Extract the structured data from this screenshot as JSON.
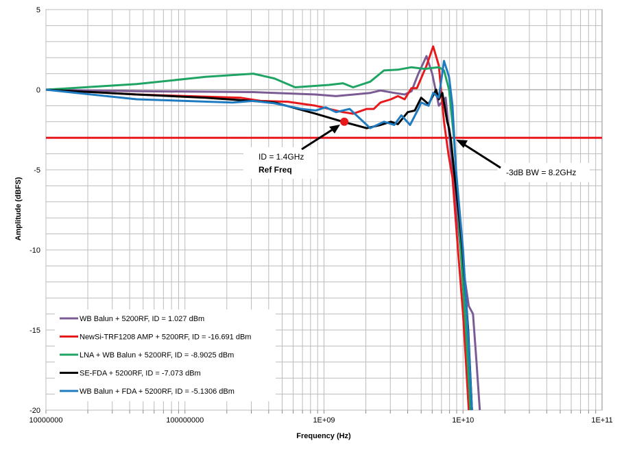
{
  "chart_data": {
    "type": "line",
    "xlabel": "Frequency (Hz)",
    "ylabel": "Amplitude (dBFS)",
    "x_scale": "log",
    "xlim": [
      10000000,
      100000000000
    ],
    "ylim": [
      -20,
      5
    ],
    "x_ticks": [
      "10000000",
      "100000000",
      "1E+09",
      "1E+10",
      "1E+11"
    ],
    "y_ticks": [
      "5",
      "0",
      "-5",
      "-10",
      "-15",
      "-20"
    ],
    "y_tick_values": [
      5,
      0,
      -5,
      -10,
      -15,
      -20
    ],
    "grid": true,
    "legend_position": "bottom-left",
    "series": [
      {
        "name": "WB Balun + 5200RF, ID =  1.027 dBm",
        "color": "#7b5b94",
        "points": [
          [
            10000000.0,
            0
          ],
          [
            45000000.0,
            -0.1
          ],
          [
            310000000.0,
            -0.15
          ],
          [
            870000000.0,
            -0.3
          ],
          [
            1220000000.0,
            -0.4
          ],
          [
            2150000000.0,
            -0.2
          ],
          [
            2550000000.0,
            -0.05
          ],
          [
            3200000000.0,
            -0.2
          ],
          [
            3800000000.0,
            -0.3
          ],
          [
            4260000000.0,
            -0.1
          ],
          [
            4770000000.0,
            1.0
          ],
          [
            5460000000.0,
            2.1
          ],
          [
            6000000000.0,
            1.0
          ],
          [
            6700000000.0,
            -1.0
          ],
          [
            7500000000.0,
            -0.5
          ],
          [
            8000000000.0,
            -3
          ],
          [
            8400000000.0,
            -5
          ],
          [
            9600000000.0,
            -10
          ],
          [
            11000000000.0,
            -13.5
          ],
          [
            11800000000.0,
            -14
          ],
          [
            12500000000.0,
            -17
          ],
          [
            13200000000.0,
            -20
          ]
        ]
      },
      {
        "name": "NewSi-TRF1208 AMP + 5200RF, ID =  -16.691 dBm",
        "color": "#e8191c",
        "points": [
          [
            10000000.0,
            0
          ],
          [
            45000000.0,
            -0.3
          ],
          [
            250000000.0,
            -0.5
          ],
          [
            350000000.0,
            -0.7
          ],
          [
            550000000.0,
            -0.75
          ],
          [
            870000000.0,
            -1.0
          ],
          [
            1370000000.0,
            -1.4
          ],
          [
            1620000000.0,
            -1.5
          ],
          [
            2030000000.0,
            -1.2
          ],
          [
            2280000000.0,
            -1.2
          ],
          [
            2550000000.0,
            -0.8
          ],
          [
            3030000000.0,
            -0.6
          ],
          [
            3400000000.0,
            -0.4
          ],
          [
            3800000000.0,
            -0.6
          ],
          [
            4260000000.0,
            0.1
          ],
          [
            4660000000.0,
            0.1
          ],
          [
            5460000000.0,
            1.5
          ],
          [
            6100000000.0,
            2.7
          ],
          [
            6700000000.0,
            1.5
          ],
          [
            7300000000.0,
            -2
          ],
          [
            7850000000.0,
            -4
          ],
          [
            8400000000.0,
            -5.5
          ],
          [
            9200000000.0,
            -10
          ],
          [
            10000000000.0,
            -14
          ],
          [
            10500000000.0,
            -17
          ],
          [
            11000000000.0,
            -20
          ]
        ]
      },
      {
        "name": "LNA + WB Balun + 5200RF, ID =  -8.9025 dBm",
        "color": "#1fa463",
        "points": [
          [
            10000000.0,
            0
          ],
          [
            45000000.0,
            0.35
          ],
          [
            140000000.0,
            0.8
          ],
          [
            310000000.0,
            1.0
          ],
          [
            440000000.0,
            0.7
          ],
          [
            620000000.0,
            0.15
          ],
          [
            1090000000.0,
            0.3
          ],
          [
            1370000000.0,
            0.4
          ],
          [
            1620000000.0,
            0.15
          ],
          [
            2150000000.0,
            0.5
          ],
          [
            2700000000.0,
            1.2
          ],
          [
            3400000000.0,
            1.25
          ],
          [
            4260000000.0,
            1.4
          ],
          [
            5300000000.0,
            1.3
          ],
          [
            6700000000.0,
            1.4
          ],
          [
            7300000000.0,
            1.2
          ],
          [
            7940000000.0,
            0
          ],
          [
            8600000000.0,
            -3
          ],
          [
            8900000000.0,
            -5
          ],
          [
            9600000000.0,
            -10
          ],
          [
            10500000000.0,
            -15
          ],
          [
            11300000000.0,
            -20
          ]
        ]
      },
      {
        "name": "SE-FDA + 5200RF, ID =  -7.073 dBm",
        "color": "#000000",
        "points": [
          [
            10000000.0,
            0
          ],
          [
            45000000.0,
            -0.3
          ],
          [
            140000000.0,
            -0.5
          ],
          [
            440000000.0,
            -0.8
          ],
          [
            870000000.0,
            -1.5
          ],
          [
            1370000000.0,
            -2.0
          ],
          [
            2030000000.0,
            -2.4
          ],
          [
            2550000000.0,
            -2.2
          ],
          [
            3030000000.0,
            -2.0
          ],
          [
            3400000000.0,
            -2.15
          ],
          [
            4000000000.0,
            -1.4
          ],
          [
            4500000000.0,
            -1.3
          ],
          [
            5000000000.0,
            -0.5
          ],
          [
            5650000000.0,
            -0.9
          ],
          [
            6400000000.0,
            0.0
          ],
          [
            6700000000.0,
            -0.6
          ],
          [
            7100000000.0,
            -0.2
          ],
          [
            7700000000.0,
            -2.0
          ],
          [
            7940000000.0,
            -2.4
          ],
          [
            8200000000.0,
            -3.2
          ],
          [
            8600000000.0,
            -5
          ],
          [
            9400000000.0,
            -8
          ],
          [
            9900000000.0,
            -10
          ],
          [
            10900000000.0,
            -15
          ],
          [
            11600000000.0,
            -20
          ]
        ]
      },
      {
        "name": "WB Balun + FDA + 5200RF, ID =  -5.1306 dBm",
        "color": "#1f7bbf",
        "points": [
          [
            10000000.0,
            0
          ],
          [
            45000000.0,
            -0.6
          ],
          [
            220000000.0,
            -0.8
          ],
          [
            310000000.0,
            -0.7
          ],
          [
            440000000.0,
            -0.85
          ],
          [
            690000000.0,
            -1.2
          ],
          [
            870000000.0,
            -1.3
          ],
          [
            1030000000.0,
            -1.1
          ],
          [
            1220000000.0,
            -1.4
          ],
          [
            1530000000.0,
            -1.2
          ],
          [
            2150000000.0,
            -2.4
          ],
          [
            2700000000.0,
            -2.0
          ],
          [
            3200000000.0,
            -2.2
          ],
          [
            3600000000.0,
            -1.6
          ],
          [
            4160000000.0,
            -2.2
          ],
          [
            4770000000.0,
            -1.2
          ],
          [
            5000000000.0,
            -0.8
          ],
          [
            5650000000.0,
            -1.0
          ],
          [
            6100000000.0,
            -0.2
          ],
          [
            6700000000.0,
            -0.5
          ],
          [
            7300000000.0,
            1.8
          ],
          [
            7940000000.0,
            0.8
          ],
          [
            8400000000.0,
            -1.0
          ],
          [
            8900000000.0,
            -5
          ],
          [
            10000000000.0,
            -10
          ],
          [
            10500000000.0,
            -13
          ],
          [
            11000000000.0,
            -16
          ],
          [
            11600000000.0,
            -20
          ]
        ]
      }
    ],
    "reference_line": {
      "y": -3,
      "color": "#e8191c"
    },
    "marker": {
      "x": 1400000000,
      "y": -2.0,
      "color": "#e8191c"
    },
    "annotations": [
      {
        "lines": [
          "ID = 1.4GHz",
          "Ref Freq"
        ],
        "points_to": [
          1400000000,
          -2.0
        ]
      },
      {
        "lines": [
          "-3dB BW = 8.2GHz"
        ],
        "points_to": [
          8200000000,
          -3
        ]
      }
    ]
  }
}
